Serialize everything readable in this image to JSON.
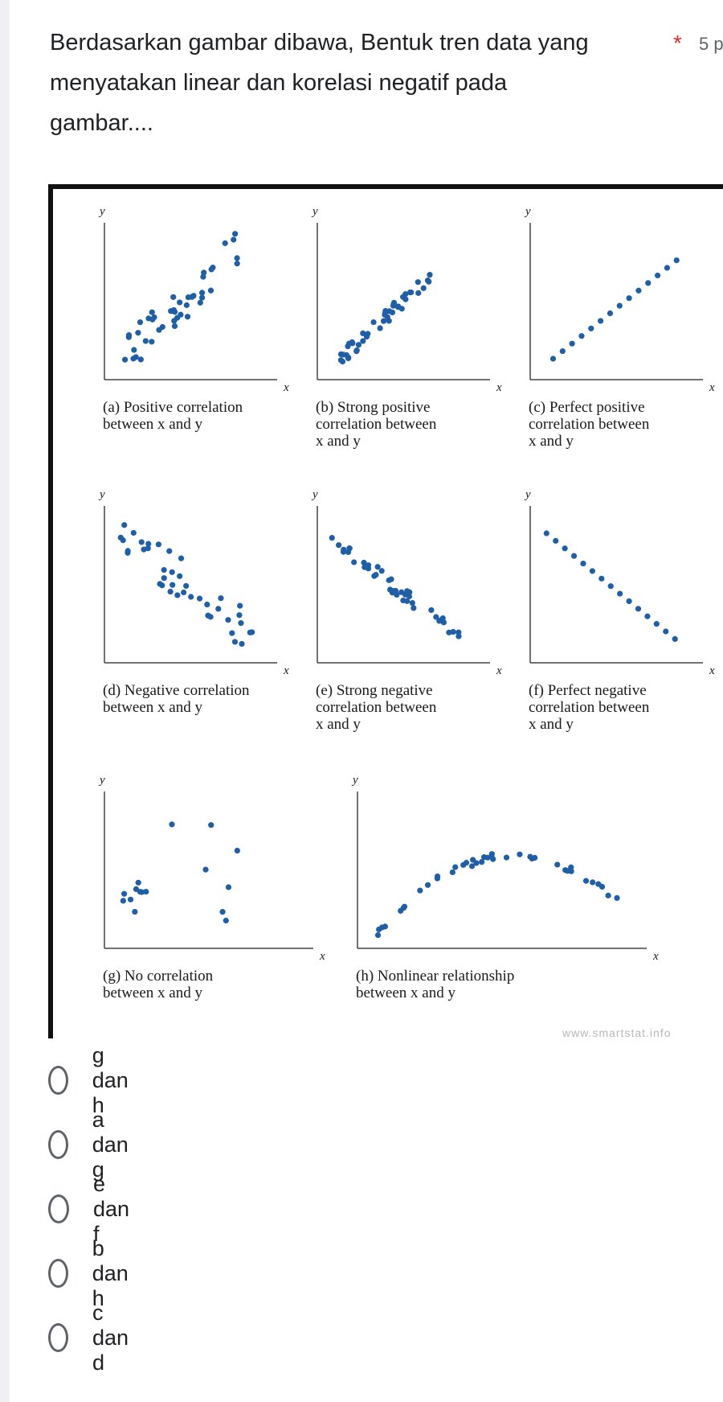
{
  "question": {
    "lines": [
      "Berdasarkan gambar dibawa, Bentuk tren data yang",
      "menyatakan linear  dan korelasi negatif pada",
      "gambar...."
    ],
    "required_mark": "*",
    "points": "5 p"
  },
  "figure": {
    "axis_y": "y",
    "axis_x": "x",
    "watermark": "www.smartstat.info",
    "dot_color": "#1f5fa8",
    "panels": [
      {
        "id": "a",
        "caption": [
          "(a)  Positive correlation",
          "between x and y"
        ]
      },
      {
        "id": "b",
        "caption": [
          "(b)  Strong positive",
          "correlation between",
          "x and y"
        ]
      },
      {
        "id": "c",
        "caption": [
          "(c)  Perfect positive",
          "correlation between",
          "x and y"
        ]
      },
      {
        "id": "d",
        "caption": [
          "(d)  Negative correlation",
          "between x and y"
        ]
      },
      {
        "id": "e",
        "caption": [
          "(e)  Strong negative",
          "correlation between",
          "x and y"
        ]
      },
      {
        "id": "f",
        "caption": [
          "(f)  Perfect negative",
          "correlation between",
          "x and y"
        ]
      },
      {
        "id": "g",
        "caption": [
          "(g)  No correlation",
          "between x and y"
        ]
      },
      {
        "id": "h",
        "caption": [
          "(h)  Nonlinear relationship",
          "between x and y"
        ]
      }
    ]
  },
  "options": [
    "g dan h",
    "a dan g",
    "e dan f",
    "b dan h",
    "c dan d"
  ],
  "colors": {
    "accent_required": "#d93025",
    "radio_border": "#5f6368"
  }
}
